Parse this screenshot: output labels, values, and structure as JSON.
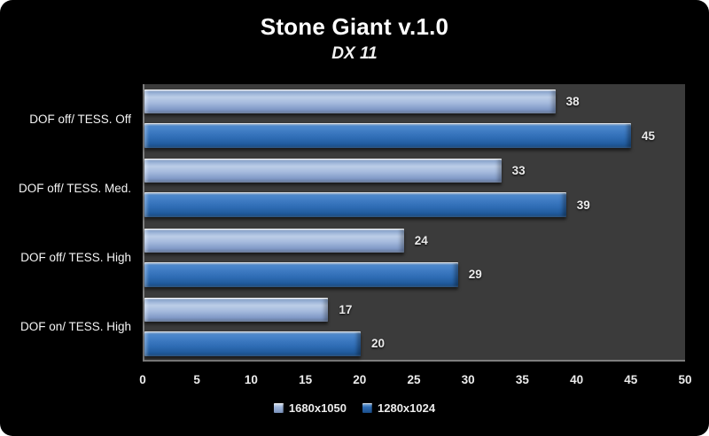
{
  "chart_data": {
    "type": "bar",
    "orientation": "horizontal",
    "title": "Stone Giant v.1.0",
    "subtitle": "DX 11",
    "categories": [
      "DOF off/ TESS. Off",
      "DOF off/ TESS. Med.",
      "DOF off/ TESS. High",
      "DOF on/ TESS. High"
    ],
    "series": [
      {
        "name": "1680x1050",
        "color": "#9db4d8",
        "values": [
          38,
          33,
          24,
          17
        ]
      },
      {
        "name": "1280x1024",
        "color": "#2e6cb4",
        "values": [
          45,
          39,
          29,
          20
        ]
      }
    ],
    "xlim": [
      0,
      50
    ],
    "x_ticks": [
      "0",
      "5",
      "10",
      "15",
      "20",
      "25",
      "30",
      "35",
      "40",
      "45",
      "50"
    ],
    "grid": false,
    "legend_position": "bottom",
    "plot_background": "#3b3b3b",
    "frame_background": "#000000",
    "text_color": "#ececec"
  }
}
